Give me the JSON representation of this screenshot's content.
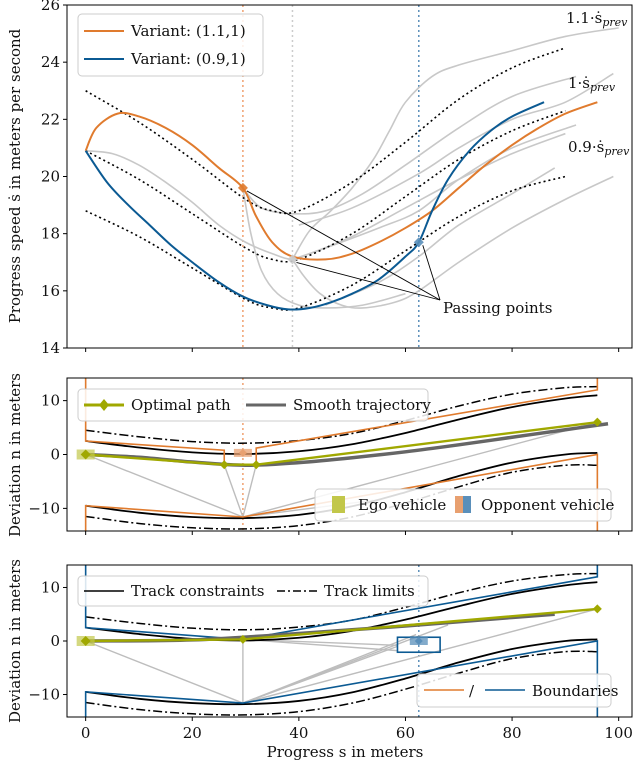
{
  "chart_data": [
    {
      "type": "line",
      "panel": "top",
      "title": "",
      "xlabel": "",
      "ylabel": "Progress speed ṡ in meters per second",
      "xlim": [
        -3.5,
        102.5
      ],
      "ylim": [
        14,
        26
      ],
      "xticks": [
        0,
        20,
        40,
        60,
        80,
        100
      ],
      "yticks": [
        14,
        16,
        18,
        20,
        22,
        24,
        26
      ],
      "ytick_labels": [
        "14",
        "16",
        "18",
        "20",
        "22",
        "24",
        "26"
      ],
      "legend": {
        "placement": "top-left",
        "entries": [
          {
            "label": "Variant: (1.1,1)",
            "color": "#e07b2e"
          },
          {
            "label": "Variant: (0.9,1)",
            "color": "#0b5a93"
          }
        ]
      },
      "vertical_lines": [
        {
          "x": 29.5,
          "color": "#f0a070",
          "style": "dotted"
        },
        {
          "x": 38.8,
          "color": "#cccccc",
          "style": "dotted"
        },
        {
          "x": 62.5,
          "color": "#5a8fba",
          "style": "dotted"
        }
      ],
      "reference_curves": [
        {
          "label": "1.1·ṡ_prev",
          "x": [
            0,
            10,
            20,
            30,
            35,
            40,
            50,
            60,
            70,
            80,
            90
          ],
          "y": [
            23.0,
            21.9,
            20.6,
            19.2,
            18.8,
            18.8,
            19.8,
            21.2,
            22.7,
            23.8,
            24.5
          ]
        },
        {
          "label": "1·ṡ_prev",
          "x": [
            0,
            10,
            20,
            30,
            35,
            40,
            50,
            60,
            70,
            80,
            90
          ],
          "y": [
            20.9,
            19.9,
            18.7,
            17.5,
            17.1,
            17.1,
            18.0,
            19.3,
            20.6,
            21.6,
            22.3
          ]
        },
        {
          "label": "0.9·ṡ_prev",
          "x": [
            0,
            10,
            20,
            30,
            35,
            40,
            50,
            60,
            70,
            80,
            90
          ],
          "y": [
            18.8,
            17.9,
            16.8,
            15.7,
            15.4,
            15.4,
            16.2,
            17.4,
            18.6,
            19.5,
            20.0
          ]
        }
      ],
      "series": [
        {
          "name": "Variant: (1.1,1)",
          "color": "#e07b2e",
          "x": [
            0,
            2,
            6,
            10,
            15,
            20,
            25,
            29.5,
            32,
            35,
            38.8,
            45,
            50,
            55,
            60,
            65,
            70,
            75,
            80,
            85,
            90,
            96
          ],
          "y": [
            20.9,
            21.7,
            22.2,
            22.1,
            21.7,
            21.1,
            20.3,
            19.6,
            18.6,
            17.7,
            17.2,
            17.1,
            17.3,
            17.7,
            18.2,
            18.8,
            19.6,
            20.4,
            21.1,
            21.7,
            22.2,
            22.6
          ]
        },
        {
          "name": "Variant: (0.9,1)",
          "color": "#0b5a93",
          "x": [
            0,
            4,
            8,
            12,
            16,
            20,
            25,
            29.5,
            34,
            38,
            42,
            46,
            50,
            55,
            60,
            62.5,
            65,
            68,
            72,
            76,
            80,
            86
          ],
          "y": [
            20.9,
            19.8,
            19.0,
            18.3,
            17.6,
            17.0,
            16.3,
            15.8,
            15.5,
            15.35,
            15.4,
            15.6,
            15.9,
            16.4,
            17.2,
            17.7,
            18.8,
            19.9,
            20.9,
            21.6,
            22.1,
            22.6
          ]
        }
      ],
      "candidate_curves_gray": [
        {
          "x": [
            0,
            5,
            10,
            15,
            20,
            25,
            30,
            35,
            38.8,
            42,
            50,
            60,
            70,
            80,
            90
          ],
          "y": [
            20.9,
            20.8,
            20.4,
            19.8,
            19.1,
            18.3,
            17.7,
            17.3,
            17.1,
            17.3,
            17.9,
            18.9,
            19.9,
            20.8,
            21.5
          ]
        },
        {
          "x": [
            29.5,
            33,
            38.8,
            45,
            52,
            60,
            70,
            80,
            92
          ],
          "y": [
            19.6,
            18.9,
            18.7,
            18.8,
            19.4,
            20.4,
            21.7,
            22.8,
            23.5
          ]
        },
        {
          "x": [
            29.5,
            31,
            33,
            36,
            40,
            45,
            52,
            60
          ],
          "y": [
            19.6,
            18.0,
            16.7,
            15.9,
            15.5,
            15.4,
            15.5,
            15.9
          ]
        },
        {
          "x": [
            38.8,
            42,
            46,
            50,
            54,
            57,
            60,
            65,
            70,
            80,
            90,
            100
          ],
          "y": [
            17.1,
            18.1,
            18.8,
            19.6,
            20.6,
            21.6,
            22.6,
            23.5,
            23.9,
            24.4,
            24.9,
            25.2
          ]
        },
        {
          "x": [
            38.8,
            41,
            44,
            48,
            52,
            58,
            62.5,
            70,
            80,
            90,
            99
          ],
          "y": [
            17.1,
            16.5,
            15.9,
            15.5,
            15.4,
            15.6,
            16.0,
            17.0,
            18.2,
            19.2,
            20.0
          ]
        },
        {
          "x": [
            38.8,
            45,
            55,
            62.5,
            70,
            80,
            92
          ],
          "y": [
            17.1,
            17.5,
            18.2,
            18.8,
            19.9,
            21.0,
            21.8
          ]
        },
        {
          "x": [
            45,
            55,
            62.5,
            70,
            80,
            88
          ],
          "y": [
            15.5,
            16.3,
            17.2,
            18.3,
            19.4,
            20.3
          ]
        },
        {
          "x": [
            40,
            50,
            62.5,
            70,
            80,
            90,
            99
          ],
          "y": [
            18.3,
            18.9,
            20.1,
            21.0,
            22.0,
            22.6,
            23.6
          ]
        }
      ],
      "markers": [
        {
          "x": 29.5,
          "y": 19.6,
          "color": "#e07b2e"
        },
        {
          "x": 38.8,
          "y": 17.1,
          "color": "#cccccc"
        },
        {
          "x": 62.5,
          "y": 17.7,
          "color": "#5a8fba"
        }
      ],
      "annotations": [
        {
          "text": "1.1·ṡ",
          "sub": "prev",
          "x": 90,
          "y": 25.4
        },
        {
          "text": "1·ṡ",
          "sub": "prev",
          "x": 90,
          "y": 23.0
        },
        {
          "text": "0.9·ṡ",
          "sub": "prev",
          "x": 90,
          "y": 20.8
        },
        {
          "text": "Passing points",
          "x": 66,
          "y": 15.5,
          "arrows_to": [
            [
              29.5,
              19.6
            ],
            [
              38.8,
              17.1
            ],
            [
              62.5,
              17.7
            ]
          ]
        }
      ]
    },
    {
      "type": "line",
      "panel": "middle",
      "xlabel": "",
      "ylabel": "Deviation n in meters",
      "xlim": [
        -3.5,
        102.5
      ],
      "ylim": [
        -14.2,
        14.2
      ],
      "yticks": [
        -10,
        0,
        10
      ],
      "ytick_labels": [
        "−10",
        "0",
        "10"
      ],
      "legends": [
        {
          "placement": "top-left",
          "entries": [
            {
              "label": "Optimal path",
              "color": "#a0a800",
              "marker": "diamond"
            },
            {
              "label": "Smooth trajectory",
              "color": "#666666"
            }
          ]
        },
        {
          "placement": "bottom-right",
          "entries": [
            {
              "label": "Ego vehicle",
              "color": "#c2c74a",
              "type": "patch"
            },
            {
              "label": "Opponent vehicle",
              "colors": [
                "#e8a070",
                "#5a8fba"
              ],
              "type": "split-patch"
            }
          ]
        }
      ],
      "vertical_lines": [
        {
          "x": 29.5,
          "color": "#f0a070",
          "style": "dotted"
        }
      ],
      "track_constraints_upper": {
        "x": [
          0,
          10,
          20,
          30,
          40,
          50,
          60,
          70,
          80,
          90,
          96
        ],
        "y": [
          2.5,
          1.3,
          0.4,
          0.1,
          0.6,
          1.9,
          4.0,
          6.5,
          8.8,
          10.4,
          11.0
        ]
      },
      "track_constraints_lower": {
        "x": [
          0,
          10,
          20,
          30,
          40,
          50,
          60,
          70,
          80,
          90,
          96
        ],
        "y": [
          -9.5,
          -10.8,
          -11.6,
          -11.8,
          -11.2,
          -9.6,
          -7.0,
          -4.0,
          -1.5,
          0.0,
          0.3
        ]
      },
      "track_limits_upper": {
        "x": [
          0,
          10,
          20,
          30,
          40,
          50,
          60,
          70,
          80,
          90,
          96
        ],
        "y": [
          4.5,
          3.3,
          2.4,
          2.1,
          2.6,
          3.9,
          6.3,
          9.0,
          11.2,
          12.4,
          12.6
        ]
      },
      "track_limits_lower": {
        "x": [
          0,
          10,
          20,
          30,
          40,
          50,
          60,
          70,
          80,
          90,
          96
        ],
        "y": [
          -11.5,
          -12.8,
          -13.6,
          -13.8,
          -13.2,
          -11.6,
          -9.0,
          -6.0,
          -3.3,
          -2.0,
          -2.0
        ]
      },
      "boundary_upper": {
        "x": [
          0,
          0,
          26,
          26,
          32,
          32,
          96,
          96
        ],
        "y": [
          14.2,
          2.5,
          0.8,
          -1.9,
          -1.9,
          1.2,
          12.0,
          14.2
        ]
      },
      "boundary_lower": {
        "x": [
          0,
          0,
          29.5,
          96,
          96
        ],
        "y": [
          -14.2,
          -9.5,
          -11.6,
          0.0,
          -14.2
        ]
      },
      "optimal_path": {
        "x": [
          0,
          26,
          32,
          96
        ],
        "y": [
          0,
          -1.9,
          -1.9,
          6.0
        ]
      },
      "smooth_trajectory": {
        "x": [
          0,
          10,
          20,
          30,
          40,
          50,
          60,
          70,
          80,
          90,
          98
        ],
        "y": [
          0,
          -0.5,
          -1.4,
          -2.0,
          -1.5,
          -0.6,
          0.5,
          1.8,
          3.2,
          4.6,
          5.7
        ]
      },
      "gray_graph_edges": [
        [
          [
            0,
            0
          ],
          [
            29.5,
            -11.6
          ]
        ],
        [
          [
            26,
            -1.9
          ],
          [
            29.5,
            -11.6
          ]
        ],
        [
          [
            32,
            -1.9
          ],
          [
            29.5,
            -11.6
          ]
        ],
        [
          [
            29.5,
            -11.6
          ],
          [
            54,
            -8.5
          ]
        ],
        [
          [
            29.5,
            -11.6
          ],
          [
            96,
            6.0
          ]
        ]
      ],
      "opponent_marker": {
        "x": 29.5,
        "y": 0.3
      },
      "ego_marker": {
        "x": 0,
        "y": 0
      }
    },
    {
      "type": "line",
      "panel": "bottom",
      "xlabel": "Progress s in meters",
      "ylabel": "Deviation n in meters",
      "xlim": [
        -3.5,
        102.5
      ],
      "ylim": [
        -14.2,
        14.2
      ],
      "xticks": [
        0,
        20,
        40,
        60,
        80,
        100
      ],
      "xtick_labels": [
        "0",
        "20",
        "40",
        "60",
        "80",
        "100"
      ],
      "yticks": [
        -10,
        0,
        10
      ],
      "ytick_labels": [
        "−10",
        "0",
        "10"
      ],
      "legends": [
        {
          "placement": "top-left",
          "entries": [
            {
              "label": "Track constraints",
              "color": "#000000",
              "style": "solid"
            },
            {
              "label": "Track limits",
              "color": "#000000",
              "style": "dashdot"
            }
          ]
        },
        {
          "placement": "bottom-right",
          "entries": [
            {
              "label": "/",
              "color": "#e07b2e"
            },
            {
              "label": "Boundaries",
              "color": "#0b5a93"
            }
          ]
        }
      ],
      "vertical_lines": [
        {
          "x": 62.5,
          "color": "#5a8fba",
          "style": "dotted"
        }
      ],
      "track_constraints_upper": {
        "x": [
          0,
          10,
          20,
          30,
          40,
          50,
          60,
          70,
          80,
          90,
          96
        ],
        "y": [
          2.5,
          1.3,
          0.4,
          0.1,
          0.6,
          1.9,
          4.0,
          6.5,
          8.8,
          10.4,
          11.0
        ]
      },
      "track_constraints_lower": {
        "x": [
          0,
          10,
          20,
          30,
          40,
          50,
          60,
          70,
          80,
          90,
          96
        ],
        "y": [
          -9.5,
          -10.8,
          -11.6,
          -11.8,
          -11.2,
          -9.6,
          -7.0,
          -4.0,
          -1.5,
          0.0,
          0.3
        ]
      },
      "track_limits_upper": {
        "x": [
          0,
          10,
          20,
          30,
          40,
          50,
          60,
          70,
          80,
          90,
          96
        ],
        "y": [
          4.5,
          3.3,
          2.4,
          2.1,
          2.6,
          3.9,
          6.3,
          9.0,
          11.2,
          12.4,
          12.6
        ]
      },
      "track_limits_lower": {
        "x": [
          0,
          10,
          20,
          30,
          40,
          50,
          60,
          70,
          80,
          90,
          96
        ],
        "y": [
          -11.5,
          -12.8,
          -13.6,
          -13.8,
          -13.2,
          -11.6,
          -9.0,
          -6.0,
          -3.3,
          -2.0,
          -2.0
        ]
      },
      "boundary_upper": {
        "x": [
          0,
          0,
          29.5,
          96,
          96
        ],
        "y": [
          14.2,
          2.5,
          0.3,
          12.0,
          14.2
        ]
      },
      "boundary_lower": {
        "x": [
          0,
          0,
          29.5,
          96,
          96
        ],
        "y": [
          -14.2,
          -9.5,
          -11.6,
          0.0,
          -14.2
        ]
      },
      "opponent_box": {
        "x": [
          58.5,
          66.5
        ],
        "y": [
          -2.1,
          0.7
        ]
      },
      "optimal_path": {
        "x": [
          0,
          29.5,
          96
        ],
        "y": [
          0,
          0.3,
          6.0
        ]
      },
      "smooth_trajectory": {
        "x": [
          0,
          20,
          40,
          60,
          80,
          88
        ],
        "y": [
          0,
          0.2,
          1.4,
          2.8,
          4.4,
          5.0
        ]
      },
      "gray_graph_edges": [
        [
          [
            0,
            0
          ],
          [
            29.5,
            -11.6
          ]
        ],
        [
          [
            29.5,
            0.3
          ],
          [
            29.5,
            -11.6
          ]
        ],
        [
          [
            29.5,
            0.3
          ],
          [
            58.5,
            -0.8
          ]
        ],
        [
          [
            29.5,
            0.3
          ],
          [
            58.5,
            -1.8
          ]
        ],
        [
          [
            29.5,
            -11.6
          ],
          [
            58.5,
            -1.0
          ]
        ],
        [
          [
            29.5,
            -11.6
          ],
          [
            62,
            1.2
          ]
        ],
        [
          [
            29.5,
            -11.6
          ],
          [
            96,
            6.0
          ]
        ],
        [
          [
            29.5,
            -11.6
          ],
          [
            68,
            3.0
          ]
        ]
      ],
      "opponent_marker": {
        "x": 62.5,
        "y": 0.0
      },
      "ego_marker": {
        "x": 0,
        "y": 0
      }
    }
  ],
  "labels": {
    "top_ylabel": "Progress speed ṡ in meters per second",
    "mid_ylabel": "Deviation n in meters",
    "bot_ylabel": "Deviation n in meters",
    "xlabel": "Progress s in meters",
    "legend_top_1": "Variant: (1.1,1)",
    "legend_top_2": "Variant: (0.9,1)",
    "legend_mid_1": "Optimal path",
    "legend_mid_2": "Smooth trajectory",
    "legend_mid_3": "Ego vehicle",
    "legend_mid_4": "Opponent vehicle",
    "legend_bot_1": "Track constraints",
    "legend_bot_2": "Track limits",
    "legend_bot_3": "/",
    "legend_bot_4": "Boundaries",
    "anno_11": "1.1·ṡ",
    "anno_1": "1·ṡ",
    "anno_09": "0.9·ṡ",
    "anno_sub": "prev",
    "passing": "Passing points"
  },
  "colors": {
    "orange": "#e07b2e",
    "blue": "#0b5a93",
    "olive": "#a0a800",
    "gray_traj": "#666666",
    "gray_light": "#c8c8c8"
  }
}
